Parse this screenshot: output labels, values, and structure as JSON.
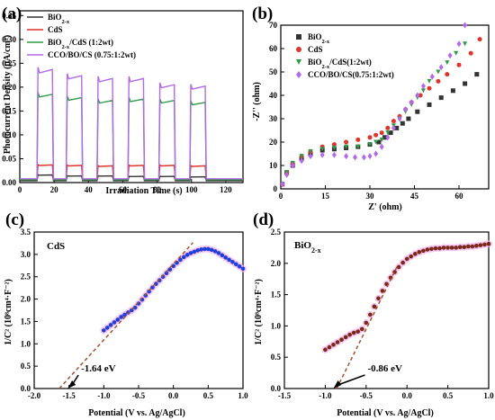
{
  "panels": {
    "a": "(a)",
    "b": "(b)",
    "c": "(c)",
    "d": "(d)"
  },
  "colors": {
    "bio2x": "#333333",
    "cds": "#e0332a",
    "composite12": "#2f9a46",
    "cco": "#b36ae8",
    "c_points": "#1f3fd8",
    "d_points": "#7a2818",
    "fit_line": "#a0522d",
    "halo": "#f3b8f0",
    "arrow": "#000000"
  },
  "chart_data": [
    {
      "id": "a",
      "type": "line",
      "title": "",
      "xlabel": "Irradiation Time (s)",
      "ylabel": "Photocurrent Density (μA/cm²)",
      "xlim": [
        0,
        130
      ],
      "ylim": [
        0,
        0.36
      ],
      "xticks": [
        "0",
        "20",
        "40",
        "60",
        "80",
        "100",
        "120"
      ],
      "yticks": [
        "0.00",
        "0.05",
        "0.10",
        "0.15",
        "0.20",
        "0.25",
        "0.30",
        "0.35"
      ],
      "light_on_intervals": [
        [
          10,
          19
        ],
        [
          27,
          36
        ],
        [
          45,
          54
        ],
        [
          63,
          72
        ],
        [
          81,
          90
        ],
        [
          99,
          108
        ]
      ],
      "legend_position": "top-left",
      "series": [
        {
          "name": "BiO2-x",
          "legend_parts": [
            "BiO",
            "2-x",
            ""
          ],
          "dark": 0.004,
          "light": [
            0.016,
            0.014,
            0.014,
            0.013,
            0.013,
            0.012
          ]
        },
        {
          "name": "CdS",
          "legend_parts": [
            "CdS",
            "",
            ""
          ],
          "dark": 0.006,
          "light": [
            0.037,
            0.036,
            0.035,
            0.036,
            0.036,
            0.035
          ]
        },
        {
          "name": "BiO2-x/CdS (1:2wt)",
          "legend_parts": [
            "BiO",
            "2-x",
            "/CdS (1:2wt)"
          ],
          "dark": 0.006,
          "light": [
            0.185,
            0.178,
            0.172,
            0.175,
            0.172,
            0.168
          ]
        },
        {
          "name": "CCO/BO/CS (0.75:1:2wt)",
          "legend_parts": [
            "CCO/BO/CS (0.75:1:2wt)",
            "",
            ""
          ],
          "dark": 0.008,
          "light": [
            0.237,
            0.224,
            0.218,
            0.218,
            0.205,
            0.202
          ]
        }
      ]
    },
    {
      "id": "b",
      "type": "scatter",
      "title": "",
      "xlabel": "Z' (ohm)",
      "ylabel": "-Z'' (ohm)",
      "xlim": [
        0,
        70
      ],
      "ylim": [
        0,
        70
      ],
      "xticks": [
        "0",
        "15",
        "30",
        "45",
        "60"
      ],
      "yticks": [
        "0",
        "10",
        "20",
        "30",
        "40",
        "50",
        "60",
        "70"
      ],
      "legend_position": "top-left",
      "series": [
        {
          "name": "BiO2-x",
          "legend_parts": [
            "BiO",
            "2-x",
            ""
          ],
          "marker": "square",
          "x": [
            0.5,
            2,
            4,
            7,
            10,
            14,
            18,
            22,
            26,
            30,
            33,
            35,
            37,
            39,
            41,
            43,
            46,
            50,
            54,
            58,
            62,
            66
          ],
          "y": [
            2,
            7,
            10,
            13,
            15,
            16.5,
            17,
            17.5,
            18,
            19,
            20,
            22,
            24,
            26,
            28,
            30,
            33,
            36,
            39,
            42,
            45,
            49
          ]
        },
        {
          "name": "CdS",
          "legend_parts": [
            "CdS",
            "",
            ""
          ],
          "marker": "circle",
          "x": [
            0.5,
            2,
            4,
            7,
            10,
            14,
            18,
            22,
            26,
            30,
            32,
            34,
            36,
            38,
            40,
            42,
            44,
            47,
            50,
            53,
            56,
            60,
            64,
            67
          ],
          "y": [
            2,
            7,
            11,
            14,
            16,
            18,
            19,
            20,
            21,
            22,
            23,
            24,
            26,
            29,
            31,
            34,
            37,
            40,
            43,
            46,
            49,
            53,
            58,
            64
          ]
        },
        {
          "name": "BiO2-x/CdS(1:2wt)",
          "legend_parts": [
            "BiO",
            "2-x",
            "/CdS(1:2wt)"
          ],
          "marker": "triangle-down",
          "x": [
            0.5,
            2,
            4,
            7,
            10,
            14,
            18,
            22,
            26,
            30,
            32,
            34,
            36,
            38,
            40,
            42,
            44,
            46,
            48,
            50,
            53,
            56,
            59,
            62
          ],
          "y": [
            2,
            7,
            11,
            14,
            16,
            17,
            17.5,
            18,
            18,
            19,
            20,
            21,
            24,
            27,
            30,
            33,
            36,
            39,
            42,
            46,
            50,
            54,
            58,
            62
          ]
        },
        {
          "name": "CCO/BO/CS(0.75:1:2wt)",
          "legend_parts": [
            "CCO/BO/CS(0.75:1:2wt)",
            "",
            ""
          ],
          "marker": "diamond",
          "x": [
            0.5,
            2,
            4,
            7,
            10,
            14,
            18,
            22,
            25,
            28,
            30,
            32,
            34,
            36,
            38,
            40,
            42,
            44,
            46,
            48,
            51,
            54,
            57,
            60,
            62
          ],
          "y": [
            2,
            6,
            10,
            12,
            14,
            14.5,
            14.5,
            14,
            13.5,
            13.5,
            14,
            15,
            18,
            22,
            26,
            30,
            34,
            37,
            40,
            44,
            48,
            52,
            57,
            62,
            70
          ]
        }
      ]
    },
    {
      "id": "c",
      "type": "scatter",
      "title": "",
      "inset_label": "CdS",
      "xlabel": "Potential (V vs. Ag/AgCl)",
      "ylabel": "1/C² (10⁸cm⁴·F⁻²)",
      "xlim": [
        -2.0,
        1.0
      ],
      "ylim": [
        0,
        3.5
      ],
      "xticks": [
        "-2.0",
        "-1.5",
        "-1.0",
        "-0.5",
        "0.0",
        "0.5",
        "1.0"
      ],
      "yticks": [
        "0.0",
        "0.5",
        "1.0",
        "1.5",
        "2.0",
        "2.5",
        "3.0",
        "3.5"
      ],
      "series": [
        {
          "name": "",
          "marker": "circle",
          "x": [
            -1.0,
            -0.95,
            -0.9,
            -0.85,
            -0.8,
            -0.75,
            -0.7,
            -0.65,
            -0.6,
            -0.55,
            -0.5,
            -0.45,
            -0.4,
            -0.35,
            -0.3,
            -0.25,
            -0.2,
            -0.15,
            -0.1,
            -0.05,
            0.0,
            0.05,
            0.1,
            0.15,
            0.2,
            0.25,
            0.3,
            0.35,
            0.4,
            0.45,
            0.5,
            0.55,
            0.6,
            0.65,
            0.7,
            0.75,
            0.8,
            0.85,
            0.9,
            0.95,
            1.0
          ],
          "y": [
            1.3,
            1.36,
            1.42,
            1.48,
            1.54,
            1.6,
            1.65,
            1.7,
            1.75,
            1.81,
            1.9,
            1.99,
            2.08,
            2.17,
            2.26,
            2.34,
            2.42,
            2.5,
            2.58,
            2.66,
            2.74,
            2.81,
            2.88,
            2.94,
            2.99,
            3.03,
            3.06,
            3.09,
            3.11,
            3.12,
            3.12,
            3.1,
            3.07,
            3.03,
            2.98,
            2.93,
            2.88,
            2.83,
            2.78,
            2.73,
            2.68
          ]
        }
      ],
      "fit_line": {
        "x": [
          -1.64,
          0.28
        ],
        "y": [
          0.0,
          3.26
        ]
      },
      "annotation": {
        "text": "-1.64 eV",
        "x": -1.52,
        "y": 0.0
      }
    },
    {
      "id": "d",
      "type": "scatter",
      "title": "",
      "inset_label_parts": [
        "BiO",
        "2-x"
      ],
      "xlabel": "Potential (V vs. Ag/AgCl)",
      "ylabel": "1/C² (10⁸cm⁴·F⁻²)",
      "xlim": [
        -1.5,
        1.0
      ],
      "ylim": [
        0,
        2.5
      ],
      "xticks": [
        "-1.5",
        "-1.0",
        "-0.5",
        "0.0",
        "0.5",
        "1.0"
      ],
      "yticks": [
        "0.0",
        "0.5",
        "1.0",
        "1.5",
        "2.0",
        "2.5"
      ],
      "series": [
        {
          "name": "",
          "marker": "circle",
          "x": [
            -1.0,
            -0.95,
            -0.9,
            -0.85,
            -0.8,
            -0.75,
            -0.7,
            -0.65,
            -0.6,
            -0.55,
            -0.5,
            -0.45,
            -0.4,
            -0.35,
            -0.3,
            -0.25,
            -0.2,
            -0.15,
            -0.1,
            -0.05,
            0.0,
            0.05,
            0.1,
            0.15,
            0.2,
            0.25,
            0.3,
            0.35,
            0.4,
            0.45,
            0.5,
            0.55,
            0.6,
            0.65,
            0.7,
            0.75,
            0.8,
            0.85,
            0.9,
            0.95,
            1.0
          ],
          "y": [
            0.62,
            0.66,
            0.7,
            0.74,
            0.78,
            0.82,
            0.86,
            0.89,
            0.91,
            0.95,
            1.05,
            1.18,
            1.31,
            1.44,
            1.56,
            1.67,
            1.77,
            1.86,
            1.94,
            2.01,
            2.07,
            2.11,
            2.15,
            2.18,
            2.2,
            2.22,
            2.23,
            2.24,
            2.24,
            2.25,
            2.25,
            2.25,
            2.25,
            2.26,
            2.26,
            2.27,
            2.27,
            2.28,
            2.29,
            2.3,
            2.31
          ]
        }
      ],
      "fit_line": {
        "x": [
          -0.86,
          -0.12
        ],
        "y": [
          0.0,
          1.95
        ]
      },
      "annotation": {
        "text": "-0.86 eV",
        "x": -0.9,
        "y": 0.0
      }
    }
  ]
}
